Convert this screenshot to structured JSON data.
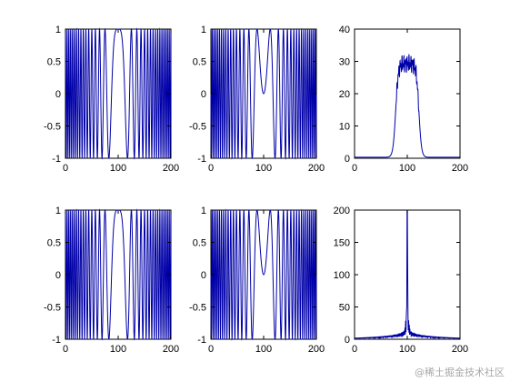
{
  "figure": {
    "line_color": "#0000a8",
    "watermark": "@稀土掘金技术社区"
  },
  "chart_data": [
    {
      "type": "line",
      "series": [
        {
          "function": "cos(2*pi*f(t)*t), chirp",
          "x_range": [
            0,
            200
          ],
          "amplitude": 1,
          "center": 100,
          "center_value": 1
        }
      ],
      "xlim": [
        0,
        200
      ],
      "ylim": [
        -1,
        1
      ],
      "xticks": [
        "0",
        "100",
        "200"
      ],
      "yticks": [
        "1",
        "0.5",
        "0",
        "-0.5",
        "-1"
      ]
    },
    {
      "type": "line",
      "series": [
        {
          "function": "cos(2*pi*f(t)*t), chirp",
          "x_range": [
            0,
            200
          ],
          "amplitude": 1,
          "center": 100,
          "center_value": 0
        }
      ],
      "xlim": [
        0,
        200
      ],
      "ylim": [
        -1,
        1
      ],
      "xticks": [
        "0",
        "100",
        "200"
      ],
      "yticks": [
        "1",
        "0.5",
        "0",
        "-0.5",
        "-1"
      ]
    },
    {
      "type": "line",
      "series": [
        {
          "function": "spectrum magnitude",
          "plateau_range": [
            80,
            120
          ],
          "plateau_level": 30
        }
      ],
      "xlim": [
        0,
        200
      ],
      "ylim": [
        0,
        40
      ],
      "xticks": [
        "0",
        "100",
        "200"
      ],
      "yticks": [
        "40",
        "30",
        "20",
        "10",
        "0"
      ]
    },
    {
      "type": "line",
      "series": [
        {
          "function": "cos(2*pi*f(t)*t), chirp",
          "x_range": [
            0,
            200
          ],
          "amplitude": 1,
          "center": 100,
          "center_value": 1
        }
      ],
      "xlim": [
        0,
        200
      ],
      "ylim": [
        -1,
        1
      ],
      "xticks": [
        "0",
        "100",
        "200"
      ],
      "yticks": [
        "1",
        "0.5",
        "0",
        "-0.5",
        "-1"
      ]
    },
    {
      "type": "line",
      "series": [
        {
          "function": "cos(2*pi*f(t)*t), chirp",
          "x_range": [
            0,
            200
          ],
          "amplitude": 1,
          "center": 100,
          "center_value": 0
        }
      ],
      "xlim": [
        0,
        200
      ],
      "ylim": [
        -1,
        1
      ],
      "xticks": [
        "0",
        "100",
        "200"
      ],
      "yticks": [
        "1",
        "0.5",
        "0",
        "-0.5",
        "-1"
      ]
    },
    {
      "type": "line",
      "series": [
        {
          "function": "spectrum magnitude",
          "peak_x": 100,
          "peak_value": 200
        }
      ],
      "xlim": [
        0,
        200
      ],
      "ylim": [
        0,
        200
      ],
      "xticks": [
        "0",
        "100",
        "200"
      ],
      "yticks": [
        "200",
        "150",
        "100",
        "50",
        "0"
      ]
    }
  ]
}
